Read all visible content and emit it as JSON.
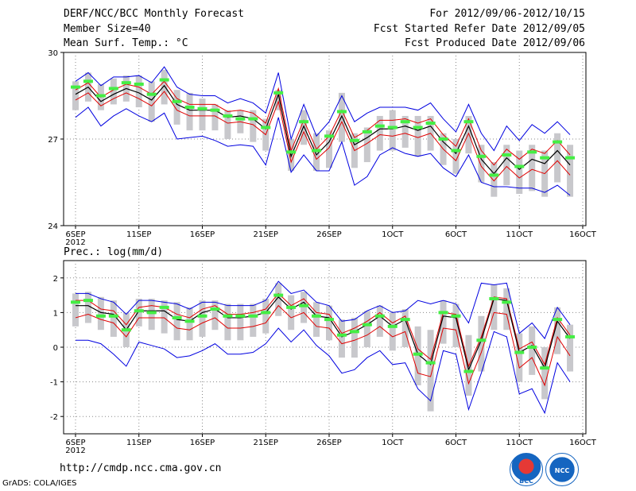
{
  "header": {
    "left1": "DERF/NCC/BCC Monthly Forecast",
    "left2": "Member Size=40",
    "left3": "Mean Surf. Temp.: °C",
    "right1": "For 2012/09/06-2012/10/15",
    "right2": "Fcst Started Refer Date 2012/09/05",
    "right3": "Fcst Produced Date 2012/09/06"
  },
  "footer": {
    "url": "http://cmdp.ncc.cma.gov.cn",
    "credit": "GrADS: COLA/IGES",
    "logo1": "BCC",
    "logo2": "NCC"
  },
  "colors": {
    "mean": "#000000",
    "inner": "#e00000",
    "outer": "#0000e0",
    "box": "#c8c8cc",
    "obs": "#44ee44"
  },
  "chart_data": [
    {
      "type": "line",
      "title": "Mean Surf. Temp.: °C",
      "ylim": [
        24,
        30
      ],
      "ytick_labels": [
        "24",
        "27",
        "30"
      ],
      "xtick_labels": [
        "6SEP",
        "11SEP",
        "16SEP",
        "21SEP",
        "26SEP",
        "1OCT",
        "6OCT",
        "11OCT",
        "16OCT"
      ],
      "xtick_days": [
        0,
        5,
        10,
        15,
        20,
        25,
        30,
        35,
        40
      ],
      "year_label": "2012",
      "x_days": [
        0,
        1,
        2,
        3,
        4,
        5,
        6,
        7,
        8,
        9,
        10,
        11,
        12,
        13,
        14,
        15,
        16,
        17,
        18,
        19,
        20,
        21,
        22,
        23,
        24,
        25,
        26,
        27,
        28,
        29,
        30,
        31,
        32,
        33,
        34,
        35,
        36,
        37,
        38,
        39
      ],
      "series": [
        {
          "name": "mean",
          "values": [
            28.55,
            28.8,
            28.3,
            28.55,
            28.75,
            28.6,
            28.35,
            28.85,
            28.2,
            28.0,
            28.0,
            28.0,
            27.75,
            27.8,
            27.7,
            27.35,
            28.55,
            26.4,
            27.45,
            26.45,
            26.9,
            27.8,
            26.8,
            27.05,
            27.35,
            27.35,
            27.45,
            27.3,
            27.45,
            26.9,
            26.5,
            27.45,
            26.3,
            25.8,
            26.35,
            25.95,
            26.3,
            26.15,
            26.6,
            26.1
          ]
        },
        {
          "name": "inner_upper",
          "values": [
            28.7,
            28.95,
            28.45,
            28.7,
            28.9,
            28.8,
            28.55,
            29.0,
            28.4,
            28.2,
            28.2,
            28.2,
            27.95,
            28.0,
            27.9,
            27.55,
            28.75,
            26.6,
            27.65,
            26.65,
            27.1,
            28.0,
            27.05,
            27.3,
            27.65,
            27.65,
            27.7,
            27.55,
            27.7,
            27.15,
            26.75,
            27.7,
            26.6,
            26.1,
            26.65,
            26.3,
            26.65,
            26.5,
            26.95,
            26.45
          ]
        },
        {
          "name": "inner_lower",
          "values": [
            28.35,
            28.6,
            28.15,
            28.4,
            28.6,
            28.4,
            28.15,
            28.65,
            28.0,
            27.8,
            27.8,
            27.8,
            27.55,
            27.6,
            27.5,
            27.15,
            28.3,
            26.2,
            27.25,
            26.3,
            26.7,
            27.6,
            26.6,
            26.85,
            27.15,
            27.1,
            27.2,
            27.05,
            27.2,
            26.65,
            26.25,
            27.2,
            26.05,
            25.55,
            26.05,
            25.65,
            25.95,
            25.8,
            26.25,
            25.75
          ]
        },
        {
          "name": "outer_upper",
          "values": [
            29.0,
            29.3,
            28.85,
            29.15,
            29.15,
            29.2,
            28.95,
            29.5,
            28.8,
            28.55,
            28.5,
            28.5,
            28.25,
            28.4,
            28.25,
            27.9,
            29.3,
            27.0,
            28.2,
            27.1,
            27.6,
            28.5,
            27.6,
            27.9,
            28.1,
            28.1,
            28.1,
            28.0,
            28.25,
            27.7,
            27.25,
            28.2,
            27.2,
            26.6,
            27.45,
            26.95,
            27.5,
            27.2,
            27.6,
            27.15
          ]
        },
        {
          "name": "outer_lower",
          "values": [
            27.75,
            28.1,
            27.45,
            27.8,
            28.05,
            27.8,
            27.6,
            27.9,
            27.0,
            27.05,
            27.1,
            26.95,
            26.75,
            26.8,
            26.75,
            26.1,
            27.75,
            25.85,
            26.45,
            25.9,
            25.9,
            26.9,
            25.4,
            25.7,
            26.45,
            26.7,
            26.5,
            26.4,
            26.5,
            26.0,
            25.7,
            26.45,
            25.5,
            25.35,
            25.35,
            25.3,
            25.3,
            25.15,
            25.4,
            25.05
          ]
        },
        {
          "name": "box_top",
          "values": [
            29.0,
            29.3,
            28.9,
            29.1,
            29.2,
            29.2,
            29.0,
            29.4,
            28.7,
            28.6,
            28.4,
            28.2,
            28.0,
            28.0,
            28.0,
            27.7,
            28.7,
            27.0,
            28.0,
            27.2,
            27.3,
            28.6,
            27.2,
            27.4,
            27.8,
            28.0,
            27.8,
            27.8,
            27.8,
            27.2,
            27.0,
            27.8,
            26.8,
            26.2,
            26.8,
            26.6,
            26.8,
            26.6,
            27.2,
            26.8
          ]
        },
        {
          "name": "box_bottom",
          "values": [
            28.0,
            28.3,
            28.0,
            28.2,
            28.3,
            28.1,
            27.6,
            28.2,
            27.5,
            27.3,
            27.3,
            27.3,
            27.0,
            27.2,
            26.9,
            26.6,
            28.0,
            25.9,
            26.8,
            25.9,
            26.0,
            26.9,
            26.0,
            26.2,
            26.6,
            26.6,
            26.7,
            26.4,
            26.6,
            26.1,
            25.8,
            26.5,
            25.5,
            25.0,
            25.4,
            25.1,
            25.2,
            25.0,
            25.5,
            25.0
          ]
        },
        {
          "name": "observed",
          "values": [
            28.8,
            29.0,
            28.5,
            28.75,
            28.95,
            28.9,
            28.55,
            29.05,
            28.3,
            28.1,
            28.05,
            28.0,
            27.8,
            27.7,
            27.7,
            27.4,
            28.6,
            26.55,
            27.6,
            26.6,
            27.1,
            27.95,
            26.95,
            27.25,
            27.45,
            27.4,
            27.6,
            27.4,
            27.55,
            27.0,
            26.6,
            27.6,
            26.4,
            25.75,
            26.45,
            26.05,
            26.55,
            26.35,
            26.9,
            26.35
          ]
        }
      ]
    },
    {
      "type": "line",
      "title": "Prec.: log(mm/d)",
      "ylim": [
        -2.5,
        2.5
      ],
      "ytick_labels": [
        "-2",
        "-1",
        "0",
        "1",
        "2"
      ],
      "ytick_values": [
        -2,
        -1,
        0,
        1,
        2
      ],
      "xtick_labels": [
        "6SEP",
        "11SEP",
        "16SEP",
        "21SEP",
        "26SEP",
        "1OCT",
        "6OCT",
        "11OCT",
        "16OCT"
      ],
      "xtick_days": [
        0,
        5,
        10,
        15,
        20,
        25,
        30,
        35,
        40
      ],
      "year_label": "2012",
      "x_days": [
        0,
        1,
        2,
        3,
        4,
        5,
        6,
        7,
        8,
        9,
        10,
        11,
        12,
        13,
        14,
        15,
        16,
        17,
        18,
        19,
        20,
        21,
        22,
        23,
        24,
        25,
        26,
        27,
        28,
        29,
        30,
        31,
        32,
        33,
        34,
        35,
        36,
        37,
        38,
        39
      ],
      "series": [
        {
          "name": "mean",
          "values": [
            1.2,
            1.2,
            1.0,
            0.95,
            0.5,
            1.05,
            1.05,
            1.05,
            0.8,
            0.75,
            1.0,
            1.1,
            0.85,
            0.85,
            0.9,
            1.0,
            1.45,
            1.1,
            1.3,
            0.9,
            0.85,
            0.3,
            0.45,
            0.65,
            0.9,
            0.6,
            0.8,
            -0.2,
            -0.5,
            0.9,
            0.85,
            -0.65,
            0.2,
            1.4,
            1.35,
            -0.15,
            0.05,
            -0.6,
            0.75,
            0.25
          ]
        },
        {
          "name": "inner_upper",
          "values": [
            1.35,
            1.35,
            1.1,
            1.05,
            0.65,
            1.15,
            1.2,
            1.15,
            0.95,
            0.85,
            1.1,
            1.2,
            0.95,
            0.95,
            1.0,
            1.1,
            1.55,
            1.2,
            1.4,
            1.0,
            0.95,
            0.4,
            0.55,
            0.75,
            1.0,
            0.7,
            0.9,
            -0.05,
            -0.35,
            1.0,
            0.95,
            -0.55,
            0.3,
            1.45,
            1.4,
            -0.05,
            0.15,
            -0.5,
            0.85,
            0.35
          ]
        },
        {
          "name": "inner_lower",
          "values": [
            0.85,
            0.95,
            0.8,
            0.7,
            0.3,
            0.85,
            0.85,
            0.85,
            0.55,
            0.5,
            0.7,
            0.85,
            0.55,
            0.55,
            0.6,
            0.7,
            1.2,
            0.85,
            1.0,
            0.6,
            0.55,
            0.1,
            0.2,
            0.35,
            0.6,
            0.3,
            0.45,
            -0.75,
            -0.85,
            0.55,
            0.5,
            -1.05,
            -0.15,
            1.0,
            0.95,
            -0.6,
            -0.3,
            -1.1,
            0.3,
            -0.25
          ]
        },
        {
          "name": "outer_upper",
          "values": [
            1.55,
            1.55,
            1.4,
            1.3,
            0.95,
            1.35,
            1.35,
            1.3,
            1.25,
            1.1,
            1.3,
            1.3,
            1.2,
            1.2,
            1.2,
            1.35,
            1.9,
            1.55,
            1.65,
            1.3,
            1.2,
            0.75,
            0.8,
            1.05,
            1.2,
            1.0,
            1.05,
            1.35,
            1.25,
            1.35,
            1.25,
            0.7,
            1.85,
            1.8,
            1.85,
            0.4,
            0.7,
            0.25,
            1.15,
            0.65
          ]
        },
        {
          "name": "outer_lower",
          "values": [
            0.2,
            0.2,
            0.1,
            -0.2,
            -0.55,
            0.15,
            0.05,
            -0.05,
            -0.3,
            -0.25,
            -0.1,
            0.1,
            -0.2,
            -0.2,
            -0.15,
            0.1,
            0.55,
            0.15,
            0.5,
            0.05,
            -0.25,
            -0.75,
            -0.65,
            -0.3,
            -0.1,
            -0.5,
            -0.45,
            -1.2,
            -1.55,
            -0.1,
            -0.2,
            -1.8,
            -0.75,
            0.45,
            0.3,
            -1.35,
            -1.2,
            -1.9,
            -0.45,
            -1.0
          ]
        },
        {
          "name": "box_top",
          "values": [
            1.55,
            1.6,
            1.45,
            1.35,
            1.0,
            1.4,
            1.4,
            1.35,
            1.3,
            1.15,
            1.35,
            1.35,
            1.25,
            1.25,
            1.25,
            1.4,
            1.85,
            1.5,
            1.6,
            1.3,
            1.2,
            0.8,
            0.85,
            1.05,
            1.2,
            1.0,
            1.1,
            0.6,
            0.5,
            1.35,
            1.25,
            0.35,
            0.9,
            1.8,
            1.7,
            0.4,
            0.6,
            0.0,
            1.15,
            0.65
          ]
        },
        {
          "name": "box_bottom",
          "values": [
            0.6,
            0.7,
            0.5,
            0.3,
            0.0,
            0.6,
            0.5,
            0.4,
            0.2,
            0.2,
            0.3,
            0.5,
            0.2,
            0.2,
            0.3,
            0.4,
            0.9,
            0.5,
            0.7,
            0.3,
            0.2,
            -0.3,
            -0.3,
            0.0,
            0.3,
            -0.1,
            0.0,
            -1.1,
            -1.85,
            0.1,
            0.0,
            -1.4,
            -0.7,
            0.5,
            0.5,
            -1.0,
            -0.8,
            -1.5,
            -0.2,
            -0.7
          ]
        },
        {
          "name": "observed",
          "values": [
            1.3,
            1.35,
            0.9,
            0.9,
            0.5,
            1.05,
            1.0,
            1.15,
            0.85,
            0.75,
            0.9,
            1.1,
            0.9,
            0.9,
            0.9,
            1.0,
            1.5,
            1.15,
            1.2,
            0.9,
            0.8,
            0.35,
            0.45,
            0.65,
            0.9,
            0.6,
            0.8,
            -0.2,
            -0.45,
            1.0,
            0.9,
            -0.7,
            0.2,
            1.4,
            1.3,
            -0.15,
            0.0,
            -0.6,
            0.8,
            0.3
          ]
        }
      ]
    }
  ]
}
